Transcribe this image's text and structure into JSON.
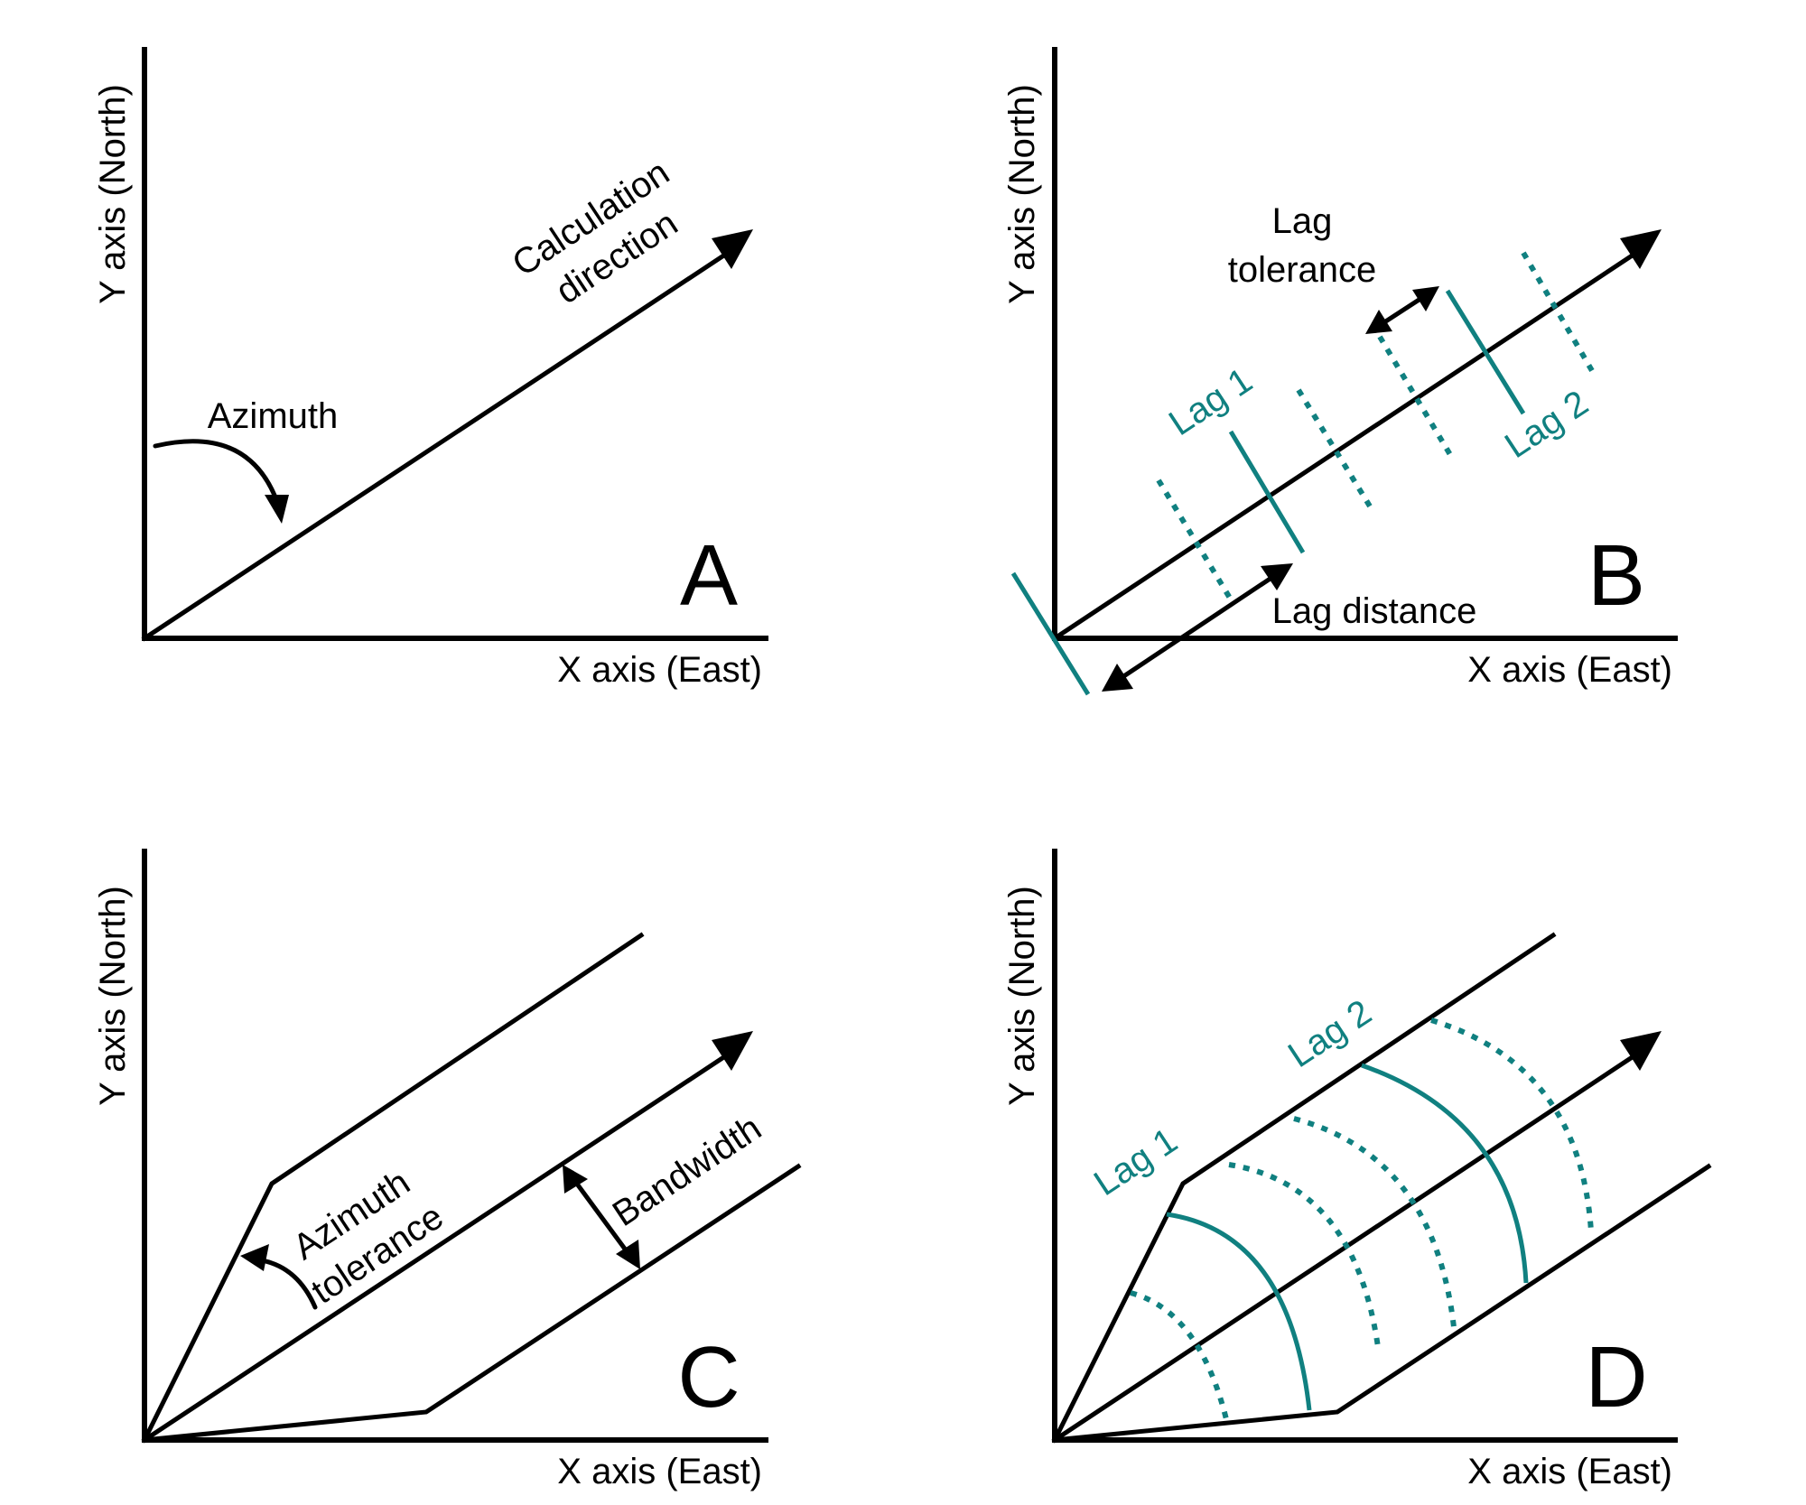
{
  "colors": {
    "ink": "#000000",
    "teal": "#108080"
  },
  "panels": [
    {
      "letter": "A",
      "x_axis": "X axis (East)",
      "y_axis": "Y axis (North)",
      "azimuth": "Azimuth",
      "calc_line1": "Calculation",
      "calc_line2": "direction"
    },
    {
      "letter": "B",
      "x_axis": "X axis (East)",
      "y_axis": "Y axis (North)",
      "lag1": "Lag 1",
      "lag2": "Lag 2",
      "lag_tol_line1": "Lag",
      "lag_tol_line2": "tolerance",
      "lag_distance": "Lag distance"
    },
    {
      "letter": "C",
      "x_axis": "X axis (East)",
      "y_axis": "Y axis (North)",
      "az_tol_line1": "Azimuth",
      "az_tol_line2": "tolerance",
      "bandwidth": "Bandwidth"
    },
    {
      "letter": "D",
      "x_axis": "X axis (East)",
      "y_axis": "Y axis (North)",
      "lag1": "Lag 1",
      "lag2": "Lag 2"
    }
  ]
}
